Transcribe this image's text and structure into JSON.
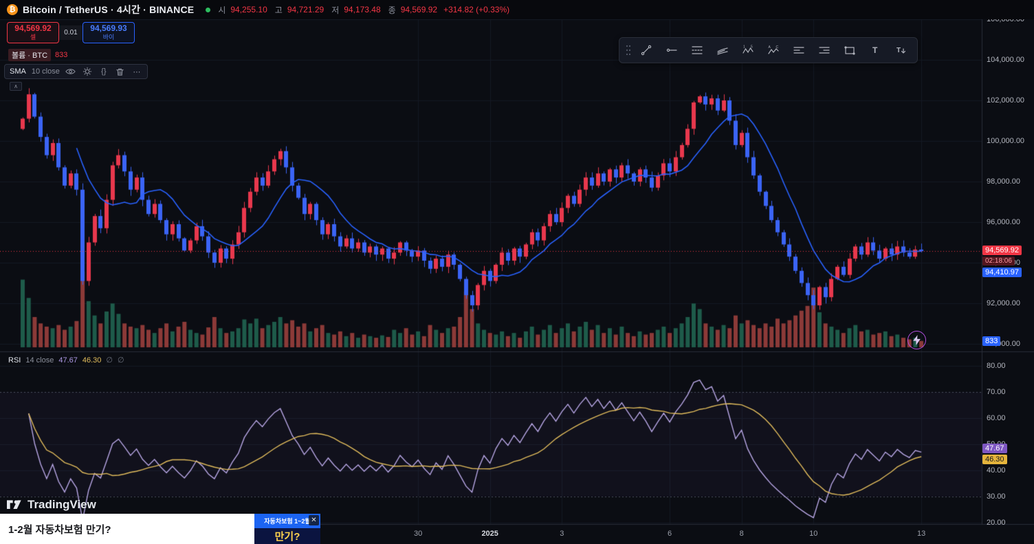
{
  "header": {
    "symbol_title": "Bitcoin / TetherUS · 4시간 · BINANCE",
    "ohlc": {
      "open_label": "시",
      "open": "94,255.10",
      "high_label": "고",
      "high": "94,721.29",
      "low_label": "저",
      "low": "94,173.48",
      "close_label": "종",
      "close": "94,569.92",
      "change": "+314.82 (+0.33%)"
    }
  },
  "order_widget": {
    "sell_price": "94,569.92",
    "sell_label": "셀",
    "spread": "0.01",
    "buy_price": "94,569.93",
    "buy_label": "바이"
  },
  "legends": {
    "volume": {
      "label": "볼륨 · BTC",
      "value": "833"
    },
    "sma": {
      "name": "SMA",
      "params": "10 close"
    },
    "rsi": {
      "name": "RSI",
      "params": "14 close",
      "value": "47.67",
      "ma_value": "46.30",
      "disabled_icon": "∅"
    }
  },
  "axis_badges": {
    "last_price": "94,569.92",
    "countdown": "02:18:06",
    "bid_price": "94,410.97",
    "volume_value": "833",
    "rsi_value": "47.67",
    "rsi_ma_value": "46.30"
  },
  "toolbar_tools": [
    "trend-line",
    "horizontal-ray",
    "fib-retracement",
    "pitchfork",
    "xabcd-pattern",
    "elliott-wave",
    "long-position",
    "short-position",
    "rectangle",
    "text",
    "anchored-text"
  ],
  "footer": {
    "brand": "TradingView"
  },
  "ad": {
    "headline": "1-2월 자동차보험 만기?",
    "banner_line1": "자동차보험 1~2월",
    "banner_line2": "만기?",
    "close_label": "✕"
  },
  "chart_data": {
    "type": "candlestick",
    "title": "Bitcoin / TetherUS 4h BINANCE",
    "interval": "4h",
    "price_axis": {
      "min": 90000,
      "max": 106000,
      "step": 2000
    },
    "current_price": 94569.92,
    "bid_price": 94410.97,
    "closes": [
      101100,
      102300,
      101200,
      100200,
      99300,
      99900,
      98700,
      97800,
      98400,
      97600,
      93100,
      95000,
      96300,
      95700,
      97100,
      98800,
      99300,
      98500,
      97600,
      98200,
      97100,
      96400,
      96900,
      96100,
      95400,
      95900,
      95200,
      94600,
      95100,
      95800,
      95300,
      94500,
      94000,
      94700,
      94200,
      94900,
      95500,
      96700,
      97500,
      98200,
      97800,
      98500,
      99100,
      99500,
      98700,
      97800,
      97200,
      96400,
      96900,
      96100,
      95400,
      95900,
      95300,
      94800,
      95200,
      94700,
      95000,
      94500,
      94800,
      94400,
      94700,
      94200,
      94500,
      95000,
      94600,
      94300,
      94600,
      94100,
      93700,
      94200,
      93800,
      94400,
      93900,
      93200,
      92400,
      91900,
      92900,
      93600,
      93100,
      93900,
      94500,
      94100,
      94700,
      94300,
      94900,
      95500,
      95100,
      95800,
      96400,
      96000,
      96700,
      97300,
      96900,
      97600,
      98200,
      97800,
      98400,
      98000,
      98600,
      98200,
      98800,
      98400,
      98000,
      98600,
      98200,
      97700,
      98300,
      98900,
      98500,
      99200,
      99800,
      100600,
      101900,
      102200,
      101800,
      102100,
      101500,
      102000,
      101000,
      99800,
      100400,
      99200,
      98300,
      97500,
      96800,
      96100,
      95500,
      94900,
      94300,
      93600,
      93000,
      92400,
      91900,
      92800,
      92300,
      93200,
      93800,
      93400,
      94200,
      94800,
      94400,
      95000,
      94600,
      94200,
      94700,
      94400,
      94800,
      94500,
      94300,
      94650,
      94569.92
    ],
    "volume": {
      "type": "bar",
      "last": 833,
      "up_color": "#1e5b4a",
      "down_color": "#8c3a38",
      "values": [
        85,
        62,
        38,
        30,
        26,
        24,
        28,
        22,
        26,
        33,
        95,
        58,
        40,
        30,
        45,
        55,
        42,
        30,
        26,
        24,
        28,
        22,
        18,
        24,
        30,
        20,
        26,
        32,
        22,
        18,
        16,
        25,
        38,
        24,
        18,
        20,
        24,
        35,
        30,
        36,
        24,
        28,
        32,
        38,
        30,
        34,
        26,
        30,
        20,
        24,
        28,
        18,
        16,
        20,
        14,
        18,
        12,
        16,
        14,
        12,
        15,
        13,
        22,
        18,
        24,
        16,
        20,
        14,
        28,
        22,
        18,
        24,
        26,
        38,
        70,
        48,
        30,
        22,
        18,
        16,
        20,
        14,
        18,
        12,
        20,
        26,
        16,
        22,
        28,
        18,
        24,
        30,
        20,
        26,
        32,
        22,
        28,
        18,
        24,
        16,
        26,
        18,
        14,
        20,
        16,
        18,
        22,
        26,
        18,
        24,
        30,
        38,
        55,
        48,
        30,
        26,
        22,
        28,
        24,
        40,
        30,
        34,
        28,
        24,
        30,
        26,
        36,
        30,
        34,
        40,
        46,
        52,
        75,
        44,
        30,
        26,
        22,
        18,
        24,
        28,
        20,
        22,
        16,
        18,
        20,
        14,
        16,
        12,
        10,
        12,
        8
      ]
    },
    "sma_overlay": {
      "period": 10,
      "source": "close",
      "color": "#2962ff"
    },
    "rsi": {
      "period": 14,
      "source": "close",
      "last": 47.67,
      "ma_last": 46.3,
      "levels": [
        70,
        30
      ],
      "axis": {
        "min": 20,
        "max": 80,
        "step": 10
      },
      "line_color": "#b9a8e6",
      "ma_color": "#e2bd5c"
    },
    "time_labels": [
      {
        "label": "30",
        "index": 66
      },
      {
        "label": "2025",
        "index": 78
      },
      {
        "label": "3",
        "index": 90
      },
      {
        "label": "6",
        "index": 108
      },
      {
        "label": "8",
        "index": 120
      },
      {
        "label": "10",
        "index": 132
      },
      {
        "label": "13",
        "index": 150
      }
    ],
    "colors": {
      "up": "#e8384d",
      "down": "#3b64f5",
      "grid": "#151a24",
      "price_line": "#f23645"
    }
  }
}
